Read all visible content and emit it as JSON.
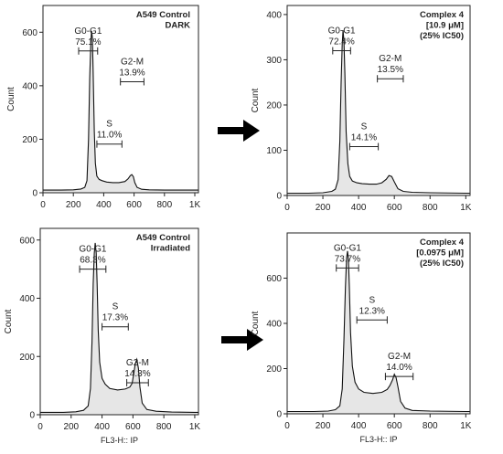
{
  "arrow_color": "#000000",
  "fill_color": "#e6e6e6",
  "chart_data": [
    {
      "type": "area",
      "title_lines": [
        "A549 Control",
        "DARK"
      ],
      "xlabel": "",
      "ylabel": "Count",
      "xlim": [
        0,
        1024
      ],
      "ylim": [
        0,
        700
      ],
      "xticks": [
        0,
        200,
        400,
        600,
        800,
        1000
      ],
      "xtick_labels": [
        "0",
        "200",
        "400",
        "600",
        "800",
        "1K"
      ],
      "yticks": [
        0,
        200,
        400,
        600
      ],
      "yfloor": 10,
      "x": [
        0,
        120,
        200,
        250,
        275,
        290,
        300,
        308,
        315,
        320,
        325,
        330,
        338,
        345,
        355,
        370,
        390,
        420,
        460,
        500,
        540,
        560,
        575,
        585,
        595,
        605,
        620,
        650,
        700,
        800,
        1000,
        1024
      ],
      "values": [
        10,
        10,
        11,
        14,
        20,
        45,
        200,
        430,
        560,
        605,
        580,
        460,
        230,
        110,
        62,
        50,
        45,
        40,
        38,
        38,
        42,
        52,
        64,
        68,
        60,
        38,
        20,
        13,
        11,
        10,
        10,
        10
      ],
      "gates": [
        {
          "label": "G0-G1",
          "pct": "75.1%",
          "x1": 235,
          "x2": 360,
          "y": 530
        },
        {
          "label": "G2-M",
          "pct": "13.9%",
          "x1": 510,
          "x2": 665,
          "y": 415
        },
        {
          "label": "S",
          "pct": "11.0%",
          "x1": 355,
          "x2": 520,
          "y": 182
        }
      ]
    },
    {
      "type": "area",
      "title_lines": [
        "Complex 4",
        "[10.9 μM]",
        "(25% IC50)"
      ],
      "xlabel": "",
      "ylabel": "Count",
      "xlim": [
        0,
        1024
      ],
      "ylim": [
        0,
        420
      ],
      "xticks": [
        0,
        200,
        400,
        600,
        800,
        1000
      ],
      "xtick_labels": [
        "0",
        "200",
        "400",
        "600",
        "800",
        "1K"
      ],
      "yticks": [
        0,
        100,
        200,
        300,
        400
      ],
      "yfloor": 5,
      "x": [
        0,
        120,
        200,
        250,
        270,
        285,
        295,
        302,
        308,
        313,
        318,
        323,
        330,
        340,
        350,
        365,
        390,
        420,
        460,
        500,
        530,
        555,
        570,
        585,
        600,
        620,
        650,
        700,
        800,
        1000,
        1024
      ],
      "values": [
        5,
        5,
        6,
        9,
        14,
        35,
        120,
        250,
        335,
        365,
        340,
        270,
        140,
        70,
        42,
        32,
        28,
        26,
        25,
        25,
        28,
        36,
        44,
        42,
        30,
        15,
        9,
        7,
        6,
        5,
        5
      ],
      "gates": [
        {
          "label": "G0-G1",
          "pct": "72.4%",
          "x1": 255,
          "x2": 355,
          "y": 320
        },
        {
          "label": "G2-M",
          "pct": "13.5%",
          "x1": 505,
          "x2": 650,
          "y": 258
        },
        {
          "label": "S",
          "pct": "14.1%",
          "x1": 350,
          "x2": 510,
          "y": 108
        }
      ]
    },
    {
      "type": "area",
      "title_lines": [
        "A549 Control",
        "Irradiated"
      ],
      "xlabel": "FL3-H:: IP",
      "ylabel": "Count",
      "xlim": [
        0,
        1024
      ],
      "ylim": [
        0,
        640
      ],
      "xticks": [
        0,
        200,
        400,
        600,
        800,
        1000
      ],
      "xtick_labels": [
        "0",
        "200",
        "400",
        "600",
        "800",
        "1K"
      ],
      "yticks": [
        0,
        200,
        400,
        600
      ],
      "yfloor": 8,
      "x": [
        0,
        150,
        230,
        280,
        310,
        325,
        335,
        343,
        350,
        356,
        362,
        368,
        375,
        385,
        400,
        420,
        450,
        500,
        550,
        580,
        595,
        605,
        615,
        625,
        635,
        645,
        660,
        690,
        750,
        850,
        1000,
        1024
      ],
      "values": [
        8,
        8,
        10,
        15,
        30,
        90,
        250,
        450,
        555,
        590,
        555,
        450,
        290,
        180,
        125,
        105,
        90,
        85,
        88,
        95,
        108,
        140,
        175,
        190,
        160,
        95,
        40,
        18,
        12,
        9,
        8,
        8
      ],
      "gates": [
        {
          "label": "G0-G1",
          "pct": "68.3%",
          "x1": 255,
          "x2": 425,
          "y": 500
        },
        {
          "label": "S",
          "pct": "17.3%",
          "x1": 400,
          "x2": 570,
          "y": 302
        },
        {
          "label": "G2-M",
          "pct": "14.3%",
          "x1": 560,
          "x2": 700,
          "y": 110
        }
      ]
    },
    {
      "type": "area",
      "title_lines": [
        "Complex 4",
        "[0.0975 μM]",
        "(25% IC50)"
      ],
      "xlabel": "FL3-H:: IP",
      "ylabel": "Count",
      "xlim": [
        0,
        1024
      ],
      "ylim": [
        0,
        800
      ],
      "xticks": [
        0,
        200,
        400,
        600,
        800,
        1000
      ],
      "xtick_labels": [
        "0",
        "200",
        "400",
        "600",
        "800",
        "1K"
      ],
      "yticks": [
        0,
        200,
        400,
        600
      ],
      "yfloor": 10,
      "x": [
        0,
        150,
        230,
        270,
        295,
        308,
        318,
        326,
        333,
        338,
        343,
        348,
        355,
        365,
        380,
        400,
        430,
        480,
        530,
        560,
        575,
        590,
        600,
        610,
        620,
        635,
        660,
        700,
        800,
        1000,
        1024
      ],
      "values": [
        10,
        10,
        12,
        18,
        35,
        110,
        330,
        560,
        690,
        720,
        680,
        560,
        360,
        210,
        140,
        110,
        95,
        90,
        95,
        108,
        125,
        150,
        175,
        160,
        120,
        55,
        25,
        15,
        12,
        10,
        10
      ],
      "gates": [
        {
          "label": "G0-G1",
          "pct": "73.7%",
          "x1": 275,
          "x2": 400,
          "y": 645
        },
        {
          "label": "S",
          "pct": "12.3%",
          "x1": 390,
          "x2": 560,
          "y": 415
        },
        {
          "label": "G2-M",
          "pct": "14.0%",
          "x1": 550,
          "x2": 705,
          "y": 165
        }
      ]
    }
  ]
}
